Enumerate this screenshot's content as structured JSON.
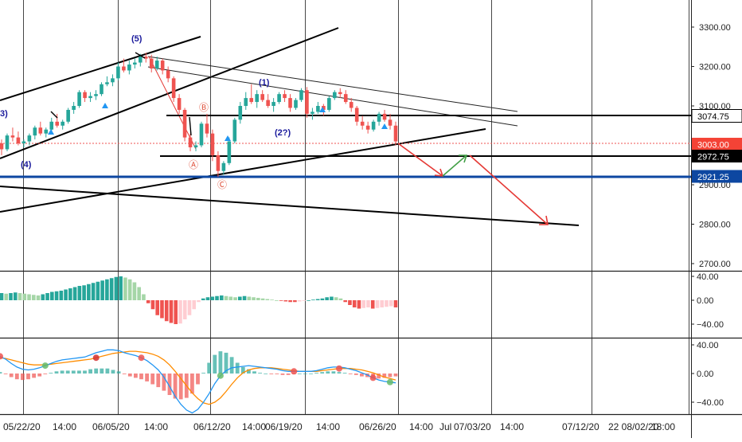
{
  "colors": {
    "bull": "#26a69a",
    "bear": "#ef5350",
    "wave_label": "#1a1a9c",
    "corrective_label": "#e0533d",
    "macd_line": "#2196f3",
    "signal_line": "#ff8c00",
    "hist_pos_strong": "#26a69a",
    "hist_pos_weak": "#a5d6a7",
    "hist_neg_strong": "#ef5350",
    "hist_neg_weak": "#ffcdd2",
    "support_blue": "#0d47a1",
    "projection_red": "#e53935",
    "projection_green": "#43a047",
    "gridline": "#333333"
  },
  "chart_data": [
    {
      "type": "candlestick",
      "pane": "price",
      "title": "",
      "xlabel": "",
      "ylabel": "",
      "ylim": [
        2670,
        3365
      ],
      "y_ticks": [
        "2700.00",
        "2800.00",
        "2900.00",
        "3000.00",
        "3100.00",
        "3200.00",
        "3300.00"
      ],
      "y_tick_values": [
        2700,
        2800,
        2900,
        3000,
        3100,
        3200,
        3300
      ],
      "price_labels": [
        {
          "text": "3074.75",
          "value": 3074.75,
          "style": "black-on-white"
        },
        {
          "text": "3003.00",
          "value": 3003.0,
          "style": "red"
        },
        {
          "text": "2972.75",
          "value": 2972.75,
          "style": "black"
        },
        {
          "text": "2921.25",
          "value": 2921.25,
          "style": "blue"
        }
      ],
      "candles_ohlc": [
        [
          3005,
          3015,
          2975,
          2990
        ],
        [
          2990,
          3030,
          2985,
          3025
        ],
        [
          3025,
          3045,
          3010,
          3020
        ],
        [
          3020,
          3035,
          3000,
          3005
        ],
        [
          3005,
          3015,
          2995,
          3010
        ],
        [
          3010,
          3030,
          3000,
          3025
        ],
        [
          3025,
          3050,
          3015,
          3045
        ],
        [
          3045,
          3060,
          3025,
          3030
        ],
        [
          3030,
          3045,
          3020,
          3040
        ],
        [
          3040,
          3070,
          3035,
          3060
        ],
        [
          3060,
          3080,
          3045,
          3050
        ],
        [
          3050,
          3065,
          3040,
          3060
        ],
        [
          3060,
          3095,
          3055,
          3090
        ],
        [
          3090,
          3110,
          3080,
          3100
        ],
        [
          3100,
          3140,
          3095,
          3135
        ],
        [
          3135,
          3140,
          3110,
          3120
        ],
        [
          3120,
          3135,
          3110,
          3125
        ],
        [
          3125,
          3140,
          3115,
          3130
        ],
        [
          3130,
          3160,
          3125,
          3155
        ],
        [
          3155,
          3175,
          3150,
          3160
        ],
        [
          3160,
          3180,
          3150,
          3170
        ],
        [
          3170,
          3210,
          3165,
          3200
        ],
        [
          3200,
          3220,
          3185,
          3190
        ],
        [
          3190,
          3215,
          3180,
          3205
        ],
        [
          3205,
          3220,
          3195,
          3210
        ],
        [
          3210,
          3232,
          3200,
          3225
        ],
        [
          3225,
          3235,
          3210,
          3220
        ],
        [
          3220,
          3230,
          3185,
          3195
        ],
        [
          3195,
          3225,
          3190,
          3215
        ],
        [
          3215,
          3220,
          3180,
          3190
        ],
        [
          3190,
          3200,
          3160,
          3170
        ],
        [
          3170,
          3175,
          3110,
          3120
        ],
        [
          3120,
          3130,
          3080,
          3090
        ],
        [
          3090,
          3095,
          3010,
          3020
        ],
        [
          3020,
          3030,
          2985,
          2995
        ],
        [
          2995,
          3010,
          2985,
          3000
        ],
        [
          3000,
          3060,
          2995,
          3055
        ],
        [
          3055,
          3080,
          3020,
          3030
        ],
        [
          3030,
          3040,
          2960,
          2975
        ],
        [
          2975,
          2985,
          2920,
          2935
        ],
        [
          2935,
          2960,
          2925,
          2955
        ],
        [
          2955,
          3020,
          2950,
          3010
        ],
        [
          3010,
          3070,
          3005,
          3065
        ],
        [
          3065,
          3110,
          3055,
          3100
        ],
        [
          3100,
          3135,
          3090,
          3120
        ],
        [
          3120,
          3155,
          3105,
          3110
        ],
        [
          3110,
          3140,
          3095,
          3130
        ],
        [
          3130,
          3140,
          3110,
          3115
        ],
        [
          3115,
          3130,
          3095,
          3100
        ],
        [
          3100,
          3120,
          3085,
          3110
        ],
        [
          3110,
          3135,
          3105,
          3130
        ],
        [
          3130,
          3140,
          3110,
          3120
        ],
        [
          3120,
          3130,
          3085,
          3095
        ],
        [
          3095,
          3120,
          3090,
          3115
        ],
        [
          3115,
          3145,
          3110,
          3140
        ],
        [
          3140,
          3148,
          3070,
          3080
        ],
        [
          3080,
          3095,
          3065,
          3085
        ],
        [
          3085,
          3110,
          3080,
          3100
        ],
        [
          3100,
          3105,
          3075,
          3090
        ],
        [
          3090,
          3125,
          3085,
          3120
        ],
        [
          3120,
          3140,
          3115,
          3135
        ],
        [
          3135,
          3145,
          3120,
          3130
        ],
        [
          3130,
          3140,
          3105,
          3110
        ],
        [
          3110,
          3120,
          3085,
          3095
        ],
        [
          3095,
          3100,
          3050,
          3060
        ],
        [
          3060,
          3075,
          3040,
          3050
        ],
        [
          3050,
          3060,
          3030,
          3040
        ],
        [
          3040,
          3065,
          3035,
          3060
        ],
        [
          3060,
          3085,
          3050,
          3080
        ],
        [
          3080,
          3090,
          3060,
          3065
        ],
        [
          3065,
          3080,
          3040,
          3050
        ],
        [
          3050,
          3060,
          3000,
          3010
        ]
      ],
      "wave_labels": [
        {
          "text": "(5)"
        },
        {
          "text": "(1)"
        },
        {
          "text": "(2?)"
        },
        {
          "text": "(4)"
        },
        {
          "text": "3)"
        }
      ],
      "corrective_labels": [
        {
          "text": "Ⓐ"
        },
        {
          "text": "Ⓑ"
        },
        {
          "text": "Ⓒ"
        }
      ],
      "horizontal_levels": [
        3074.75,
        2972.75,
        2921.25
      ],
      "projection_path_prices": [
        3003,
        2928,
        2972,
        2795
      ]
    },
    {
      "type": "bar",
      "pane": "oscillator_histogram",
      "title": "",
      "ylim": [
        -65,
        52
      ],
      "y_ticks": [
        "40.00",
        "0.00",
        "−40.00"
      ],
      "y_tick_values": [
        40,
        0,
        -40
      ],
      "values": [
        12,
        11,
        12,
        13,
        12,
        11,
        10,
        9,
        8,
        10,
        12,
        14,
        15,
        16,
        18,
        20,
        22,
        24,
        25,
        27,
        29,
        31,
        33,
        35,
        37,
        39,
        40,
        38,
        35,
        30,
        22,
        10,
        -5,
        -15,
        -25,
        -30,
        -35,
        -38,
        -40,
        -39,
        -32,
        -25,
        -15,
        -3,
        3,
        5,
        6,
        7,
        8,
        7,
        6,
        5,
        6,
        7,
        6,
        5,
        4,
        3,
        2,
        1,
        0,
        -1,
        -2,
        -3,
        -3,
        -2,
        -1,
        0,
        1,
        2,
        3,
        5,
        6,
        5,
        3,
        -3,
        -8,
        -12,
        -14,
        -13,
        -12,
        -14,
        -13,
        -12,
        -11,
        -10,
        -12
      ]
    },
    {
      "type": "line",
      "pane": "macd",
      "title": "",
      "ylim": [
        -63,
        50
      ],
      "y_ticks": [
        "40.00",
        "0.00",
        "−40.00"
      ],
      "y_tick_values": [
        40,
        0,
        -40
      ],
      "series_macd_values": [
        24,
        20,
        14,
        9,
        6,
        5,
        6,
        8,
        11,
        14,
        17,
        19,
        20,
        21,
        22,
        23,
        26,
        29,
        31,
        33,
        33,
        32,
        29,
        27,
        25,
        22,
        18,
        12,
        5,
        -5,
        -18,
        -32,
        -43,
        -51,
        -55,
        -50,
        -40,
        -28,
        -14,
        -3,
        4,
        8,
        9,
        10,
        11,
        10,
        9,
        8,
        7,
        6,
        4,
        3,
        3,
        3,
        3,
        3,
        4,
        6,
        8,
        9,
        9,
        8,
        6,
        4,
        1,
        -2,
        -6,
        -9,
        -11,
        -12,
        -13
      ],
      "series_signal_values": [
        22,
        21,
        19,
        17,
        15,
        13,
        12,
        12,
        12,
        13,
        14,
        15,
        16,
        17,
        18,
        19,
        20,
        22,
        24,
        26,
        28,
        29,
        30,
        31,
        31,
        30,
        29,
        27,
        24,
        19,
        12,
        3,
        -7,
        -17,
        -27,
        -35,
        -41,
        -43,
        -40,
        -34,
        -25,
        -15,
        -6,
        1,
        5,
        7,
        8,
        8,
        8,
        7,
        6,
        5,
        4,
        3,
        3,
        3,
        3,
        4,
        5,
        6,
        7,
        7,
        7,
        6,
        5,
        3,
        1,
        -2,
        -5,
        -7,
        -9
      ],
      "histogram_values": [
        2,
        -1,
        -5,
        -8,
        -9,
        -8,
        -6,
        -4,
        -1,
        1,
        3,
        4,
        4,
        4,
        4,
        4,
        6,
        7,
        7,
        7,
        5,
        3,
        -1,
        -4,
        -6,
        -8,
        -11,
        -15,
        -19,
        -24,
        -30,
        -35,
        -36,
        -34,
        -28,
        -15,
        1,
        15,
        26,
        31,
        29,
        23,
        15,
        9,
        6,
        3,
        1,
        0,
        -1,
        -1,
        -2,
        -2,
        -1,
        0,
        0,
        0,
        1,
        2,
        3,
        3,
        2,
        1,
        -1,
        -2,
        -4,
        -5,
        -7,
        -7,
        -6,
        -5,
        -4
      ],
      "cross_markers": [
        {
          "series": "macd",
          "index": 0,
          "color": "#ef5350"
        },
        {
          "series": "macd",
          "index": 8,
          "color": "#66bb6a"
        },
        {
          "series": "signal",
          "index": 17,
          "color": "#d32f2f"
        },
        {
          "series": "macd",
          "index": 25,
          "color": "#ef5350"
        },
        {
          "series": "macd",
          "index": 39,
          "color": "#66bb6a"
        },
        {
          "series": "macd",
          "index": 52,
          "color": "#ef5350"
        },
        {
          "series": "signal",
          "index": 60,
          "color": "#ef5350"
        },
        {
          "series": "macd",
          "index": 66,
          "color": "#ef5350"
        },
        {
          "series": "macd",
          "index": 69,
          "color": "#66bb6a"
        }
      ]
    }
  ],
  "time_axis": {
    "labels": [
      "05/22/20",
      "14:00",
      "06/05/20",
      "14:00",
      "06/12/20",
      "14:00",
      "06/19/20",
      "14:00",
      "06/26/20",
      "14:00",
      "Jul",
      "07/03/20",
      "14:00",
      "07/12/20",
      "22 08/02/20",
      "18:00"
    ]
  }
}
